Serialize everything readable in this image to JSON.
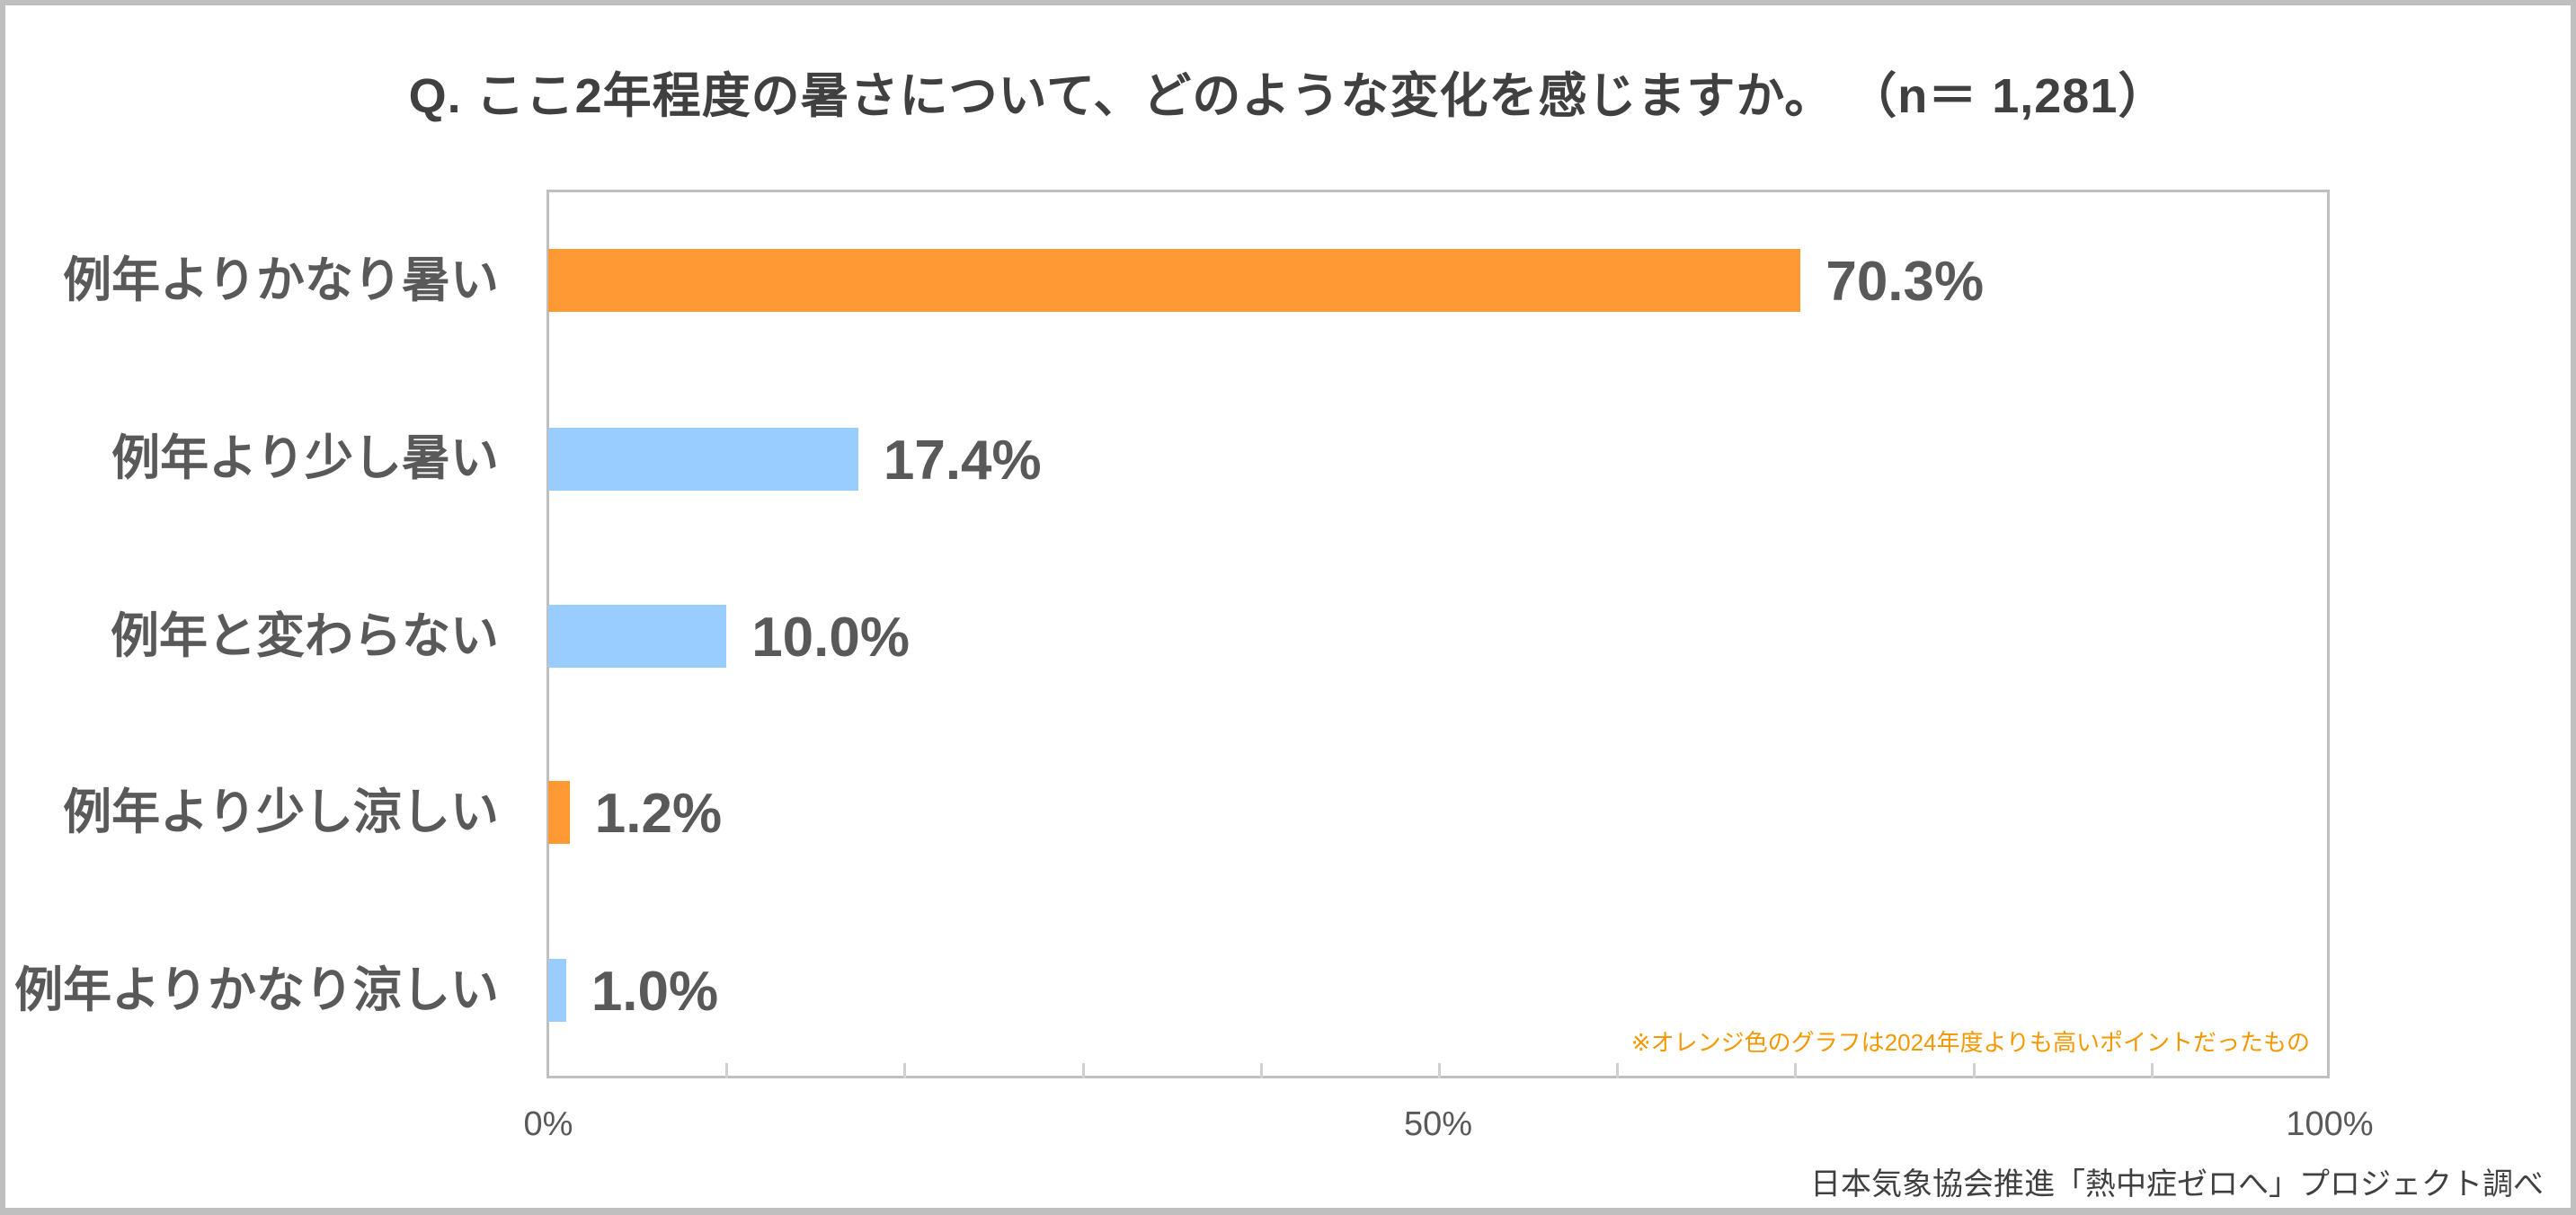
{
  "title": "Q. ここ2年程度の暑さについて、どのような変化を感じますか。 （n＝ 1,281）",
  "footnote": "※オレンジ色のグラフは2024年度よりも高いポイントだったもの",
  "credit": "日本気象協会推進「熱中症ゼロへ」プロジェクト調べ",
  "colors": {
    "highlight": "#FF9933",
    "normal": "#99CCFF",
    "text": "#595959",
    "title": "#404040",
    "footnote": "#F39800",
    "axis": "#BFBFBF"
  },
  "axis": {
    "ticks": [
      "0%",
      "50%",
      "100%"
    ]
  },
  "bars": [
    {
      "label": "例年よりかなり暑い",
      "value_label": "70.3%",
      "value": 70.3,
      "color": "#FF9933"
    },
    {
      "label": "例年より少し暑い",
      "value_label": "17.4%",
      "value": 17.4,
      "color": "#99CCFF"
    },
    {
      "label": "例年と変わらない",
      "value_label": "10.0%",
      "value": 10.0,
      "color": "#99CCFF"
    },
    {
      "label": "例年より少し涼しい",
      "value_label": "1.2%",
      "value": 1.2,
      "color": "#FF9933"
    },
    {
      "label": "例年よりかなり涼しい",
      "value_label": "1.0%",
      "value": 1.0,
      "color": "#99CCFF"
    }
  ],
  "chart_data": {
    "type": "bar",
    "orientation": "horizontal",
    "title": "Q. ここ2年程度の暑さについて、どのような変化を感じますか。 （n＝ 1,281）",
    "categories": [
      "例年よりかなり暑い",
      "例年より少し暑い",
      "例年と変わらない",
      "例年より少し涼しい",
      "例年よりかなり涼しい"
    ],
    "values": [
      70.3,
      17.4,
      10.0,
      1.2,
      1.0
    ],
    "unit": "%",
    "bar_colors": [
      "#FF9933",
      "#99CCFF",
      "#99CCFF",
      "#FF9933",
      "#99CCFF"
    ],
    "highlighted": [
      "例年よりかなり暑い",
      "例年より少し涼しい"
    ],
    "annotation": "※オレンジ色のグラフは2024年度よりも高いポイントだったもの",
    "source": "日本気象協会推進「熱中症ゼロへ」プロジェクト調べ",
    "xlabel": "",
    "ylabel": "",
    "xlim": [
      0,
      100
    ],
    "x_tick_labels": [
      "0%",
      "50%",
      "100%"
    ],
    "minor_ticks_every": 10,
    "grid": false,
    "legend": null,
    "n": 1281
  }
}
